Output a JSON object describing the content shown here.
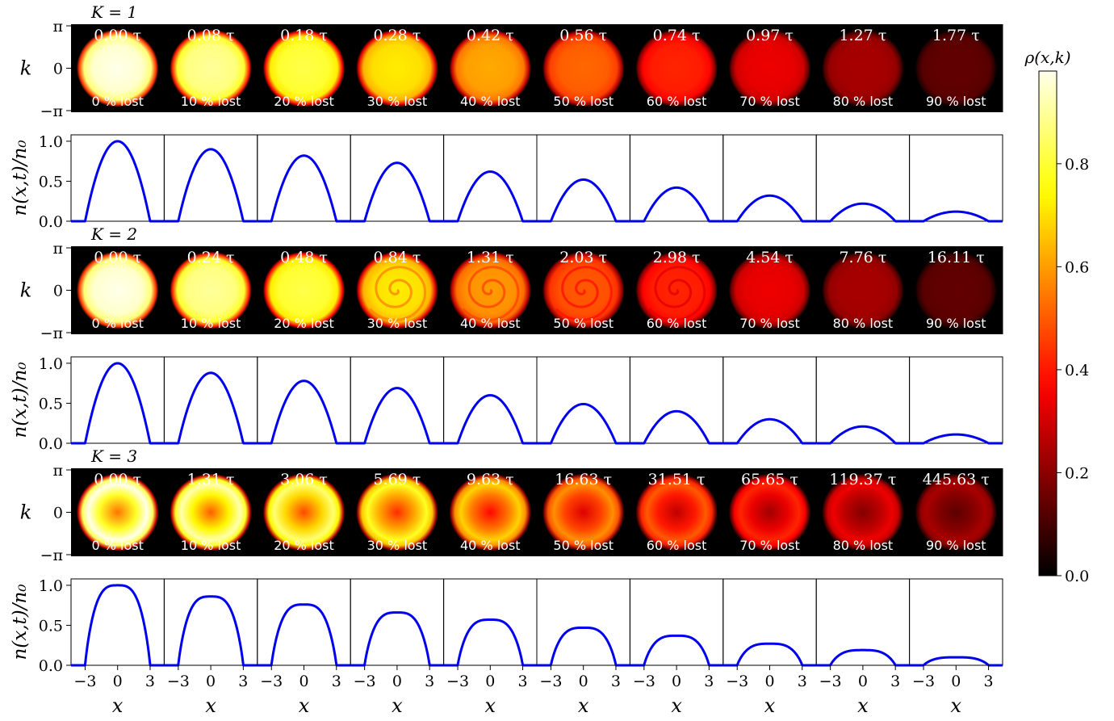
{
  "chart_data": {
    "type": "heatmap",
    "colorbar": {
      "label": "ρ(x,k)",
      "ticks": [
        0.0,
        0.2,
        0.4,
        0.6,
        0.8
      ],
      "tick_labels": [
        "0.0",
        "0.2",
        "0.4",
        "0.6",
        "0.8"
      ],
      "range": [
        0,
        0.98
      ],
      "colormap": "hot"
    },
    "heatmap_axis": {
      "ylabel": "k",
      "ytick_labels": [
        "π",
        "0",
        "−π"
      ]
    },
    "line_axis": {
      "ylabel": "n(x,t)/n₀",
      "ytick_labels": [
        "1.0",
        "0.5",
        "0.0"
      ],
      "ylim": [
        0,
        1.08
      ],
      "xlim": [
        -4.3,
        4.3
      ],
      "xlabel": "x",
      "xtick_labels": [
        "−3",
        "0",
        "3"
      ],
      "line_color": "#0000ee"
    },
    "lost_labels": [
      "0 % lost",
      "10 % lost",
      "20 % lost",
      "30 % lost",
      "40 % lost",
      "50 % lost",
      "60 % lost",
      "70 % lost",
      "80 % lost",
      "90 % lost"
    ],
    "groups": [
      {
        "title": "K = 1",
        "times": [
          "0.00 τ",
          "0.08 τ",
          "0.18 τ",
          "0.28 τ",
          "0.42 τ",
          "0.56 τ",
          "0.74 τ",
          "0.97 τ",
          "1.27 τ",
          "1.77 τ"
        ],
        "peak_density": [
          1.0,
          0.9,
          0.82,
          0.73,
          0.62,
          0.52,
          0.42,
          0.32,
          0.22,
          0.12
        ],
        "profile": "parabolic",
        "heatmap_intensity": [
          0.98,
          0.9,
          0.82,
          0.72,
          0.62,
          0.52,
          0.42,
          0.34,
          0.24,
          0.14
        ],
        "heatmap_style": "smooth"
      },
      {
        "title": "K = 2",
        "times": [
          "0.00 τ",
          "0.24 τ",
          "0.48 τ",
          "0.84 τ",
          "1.31 τ",
          "2.03 τ",
          "2.98 τ",
          "4.54 τ",
          "7.76 τ",
          "16.11 τ"
        ],
        "peak_density": [
          1.0,
          0.88,
          0.78,
          0.69,
          0.6,
          0.49,
          0.4,
          0.3,
          0.21,
          0.11
        ],
        "profile": "parabolic",
        "heatmap_intensity": [
          0.98,
          0.9,
          0.82,
          0.72,
          0.6,
          0.5,
          0.42,
          0.34,
          0.24,
          0.14
        ],
        "heatmap_style": "spiral"
      },
      {
        "title": "K = 3",
        "times": [
          "0.00 τ",
          "1.31 τ",
          "3.06 τ",
          "5.69 τ",
          "9.63 τ",
          "16.63 τ",
          "31.51 τ",
          "65.65 τ",
          "119.37 τ",
          "445.63 τ"
        ],
        "peak_density": [
          1.0,
          0.86,
          0.76,
          0.66,
          0.57,
          0.47,
          0.37,
          0.27,
          0.19,
          0.1
        ],
        "profile": "flat-top",
        "heatmap_intensity": [
          0.98,
          0.92,
          0.86,
          0.78,
          0.68,
          0.58,
          0.5,
          0.42,
          0.34,
          0.24
        ],
        "heatmap_style": "ring"
      }
    ]
  }
}
